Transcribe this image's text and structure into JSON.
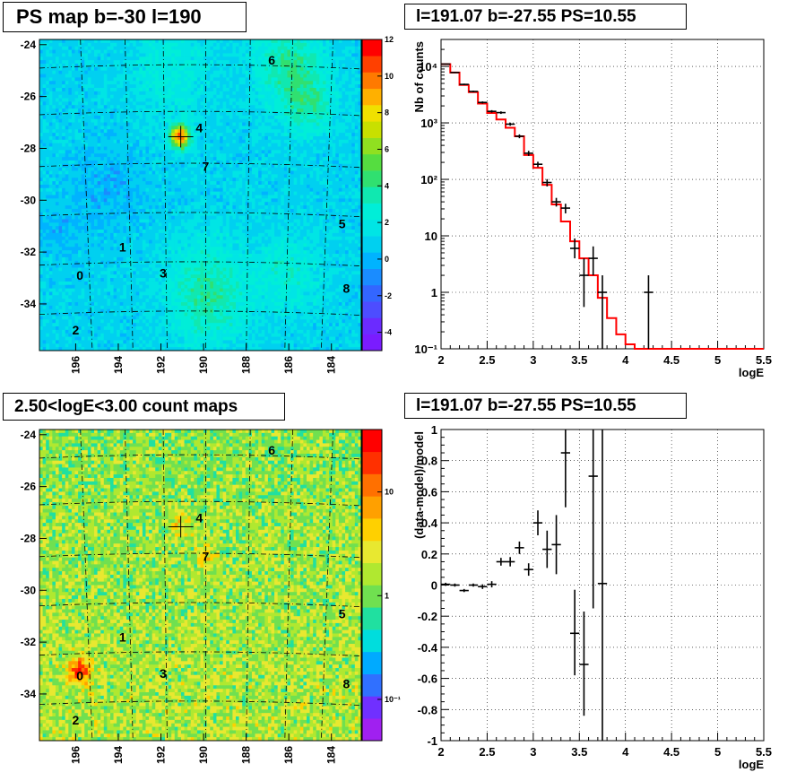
{
  "chart_data": [
    {
      "type": "heatmap",
      "title": "PS map b=-30 l=190",
      "x_tick_labels": [
        "196",
        "194",
        "192",
        "190",
        "188",
        "186",
        "184"
      ],
      "x_ticks": [
        196,
        194,
        192,
        190,
        188,
        186,
        184
      ],
      "y_tick_labels": [
        "-24",
        "-26",
        "-28",
        "-30",
        "-32",
        "-34"
      ],
      "y_ticks": [
        -24,
        -26,
        -28,
        -30,
        -32,
        -34
      ],
      "xlim": [
        197.7,
        182.6
      ],
      "ylim": [
        -35.8,
        -23.8
      ],
      "colorbar": {
        "min": -5,
        "max": 12,
        "tick_labels": [
          "12",
          "10",
          "8",
          "6",
          "4",
          "2",
          "0",
          "-2",
          "-4"
        ],
        "ticks": [
          12,
          10,
          8,
          6,
          4,
          2,
          0,
          -2,
          -4
        ]
      },
      "sources": [
        {
          "label": "0",
          "l": 195.8,
          "b": -32.9
        },
        {
          "label": "1",
          "l": 193.8,
          "b": -31.8
        },
        {
          "label": "2",
          "l": 196.0,
          "b": -35.0
        },
        {
          "label": "3",
          "l": 191.9,
          "b": -32.8
        },
        {
          "label": "4",
          "l": 190.2,
          "b": -27.2
        },
        {
          "label": "5",
          "l": 183.5,
          "b": -30.9
        },
        {
          "label": "6",
          "l": 186.8,
          "b": -24.6
        },
        {
          "label": "7",
          "l": 189.9,
          "b": -28.7
        },
        {
          "label": "8",
          "l": 183.3,
          "b": -33.4
        }
      ],
      "marker": {
        "l": 191.07,
        "b": -27.55
      }
    },
    {
      "type": "line",
      "title": "l=191.07 b=-27.55 PS=10.55",
      "xlabel": "logE",
      "ylabel": "Nb of counts",
      "xlim": [
        2,
        5.5
      ],
      "ylim": [
        0.1,
        30000
      ],
      "yscale": "log",
      "x_tick_labels": [
        "2",
        "2.5",
        "3",
        "3.5",
        "4",
        "4.5",
        "5",
        "5.5"
      ],
      "x_ticks": [
        2,
        2.5,
        3,
        3.5,
        4,
        4.5,
        5,
        5.5
      ],
      "y_tick_labels": [
        "10⁻¹",
        "1",
        "10",
        "10²",
        "10³",
        "10⁴"
      ],
      "y_ticks": [
        0.1,
        1,
        10,
        100,
        1000,
        10000
      ],
      "grid": true,
      "data_points": [
        {
          "x": 2.05,
          "y": 11000,
          "lo": 10800,
          "hi": 11200
        },
        {
          "x": 2.15,
          "y": 7800,
          "lo": 7600,
          "hi": 8000
        },
        {
          "x": 2.25,
          "y": 4800,
          "lo": 4650,
          "hi": 4950
        },
        {
          "x": 2.35,
          "y": 3600,
          "lo": 3480,
          "hi": 3720
        },
        {
          "x": 2.45,
          "y": 2300,
          "lo": 2200,
          "hi": 2400
        },
        {
          "x": 2.55,
          "y": 1600,
          "lo": 1520,
          "hi": 1680
        },
        {
          "x": 2.65,
          "y": 1520,
          "lo": 1440,
          "hi": 1600
        },
        {
          "x": 2.75,
          "y": 950,
          "lo": 890,
          "hi": 1010
        },
        {
          "x": 2.85,
          "y": 580,
          "lo": 535,
          "hi": 625
        },
        {
          "x": 2.95,
          "y": 290,
          "lo": 260,
          "hi": 320
        },
        {
          "x": 3.05,
          "y": 185,
          "lo": 165,
          "hi": 205
        },
        {
          "x": 3.15,
          "y": 88,
          "lo": 75,
          "hi": 101
        },
        {
          "x": 3.25,
          "y": 40,
          "lo": 33,
          "hi": 47
        },
        {
          "x": 3.35,
          "y": 31,
          "lo": 25,
          "hi": 37
        },
        {
          "x": 3.45,
          "y": 6,
          "lo": 4,
          "hi": 9
        },
        {
          "x": 3.55,
          "y": 2,
          "lo": 0.55,
          "hi": 4
        },
        {
          "x": 3.65,
          "y": 4,
          "lo": 2,
          "hi": 6.5
        },
        {
          "x": 3.75,
          "y": 1,
          "lo": 0.1,
          "hi": 2
        },
        {
          "x": 4.25,
          "y": 1,
          "lo": 0.1,
          "hi": 2
        }
      ],
      "model_step": {
        "edges": [
          2,
          2.1,
          2.2,
          2.3,
          2.4,
          2.5,
          2.6,
          2.7,
          2.8,
          2.9,
          3.0,
          3.1,
          3.2,
          3.3,
          3.4,
          3.5,
          3.6,
          3.7,
          3.8,
          3.9,
          4.0,
          4.1,
          5.5
        ],
        "values": [
          11000,
          7800,
          4700,
          3500,
          2200,
          1500,
          1150,
          820,
          580,
          270,
          160,
          80,
          36,
          18,
          8,
          4,
          2,
          0.8,
          0.35,
          0.18,
          0.12,
          0.1
        ]
      }
    },
    {
      "type": "heatmap",
      "title": "2.50<logE<3.00 count maps",
      "x_tick_labels": [
        "196",
        "194",
        "192",
        "190",
        "188",
        "186",
        "184"
      ],
      "x_ticks": [
        196,
        194,
        192,
        190,
        188,
        186,
        184
      ],
      "y_tick_labels": [
        "-24",
        "-26",
        "-28",
        "-30",
        "-32",
        "-34"
      ],
      "y_ticks": [
        -24,
        -26,
        -28,
        -30,
        -32,
        -34
      ],
      "xlim": [
        197.7,
        182.6
      ],
      "ylim": [
        -35.8,
        -23.8
      ],
      "colorbar": {
        "scale": "log",
        "tick_labels": [
          "10",
          "1",
          "10⁻¹"
        ],
        "ticks": [
          10,
          1,
          0.1
        ]
      },
      "sources": [
        {
          "label": "0",
          "l": 195.8,
          "b": -33.3
        },
        {
          "label": "1",
          "l": 193.8,
          "b": -31.8
        },
        {
          "label": "2",
          "l": 196.0,
          "b": -35.0
        },
        {
          "label": "3",
          "l": 191.9,
          "b": -33.2
        },
        {
          "label": "4",
          "l": 190.2,
          "b": -27.2
        },
        {
          "label": "5",
          "l": 183.5,
          "b": -30.9
        },
        {
          "label": "6",
          "l": 186.8,
          "b": -24.6
        },
        {
          "label": "7",
          "l": 189.9,
          "b": -28.7
        },
        {
          "label": "8",
          "l": 183.3,
          "b": -33.6
        }
      ],
      "marker": {
        "l": 191.07,
        "b": -27.55
      }
    },
    {
      "type": "scatter",
      "title": "l=191.07 b=-27.55 PS=10.55",
      "xlabel": "logE",
      "ylabel": "(data-model)/model",
      "xlim": [
        2,
        5.5
      ],
      "ylim": [
        -1,
        1
      ],
      "x_tick_labels": [
        "2",
        "2.5",
        "3",
        "3.5",
        "4",
        "4.5",
        "5",
        "5.5"
      ],
      "x_ticks": [
        2,
        2.5,
        3,
        3.5,
        4,
        4.5,
        5,
        5.5
      ],
      "y_tick_labels": [
        "1",
        "0.8",
        "0.6",
        "0.4",
        "0.2",
        "0",
        "-0.2",
        "-0.4",
        "-0.6",
        "-0.8",
        "-1"
      ],
      "y_ticks": [
        1,
        0.8,
        0.6,
        0.4,
        0.2,
        0,
        -0.2,
        -0.4,
        -0.6,
        -0.8,
        -1
      ],
      "grid": true,
      "data_points": [
        {
          "x": 2.05,
          "y": 0.005,
          "lo": -0.005,
          "hi": 0.015
        },
        {
          "x": 2.15,
          "y": 0.0,
          "lo": -0.01,
          "hi": 0.01
        },
        {
          "x": 2.25,
          "y": -0.035,
          "lo": -0.045,
          "hi": -0.025
        },
        {
          "x": 2.35,
          "y": 0.0,
          "lo": -0.01,
          "hi": 0.01
        },
        {
          "x": 2.45,
          "y": -0.01,
          "lo": -0.025,
          "hi": 0.005
        },
        {
          "x": 2.55,
          "y": 0.005,
          "lo": -0.015,
          "hi": 0.025
        },
        {
          "x": 2.65,
          "y": 0.15,
          "lo": 0.125,
          "hi": 0.175
        },
        {
          "x": 2.75,
          "y": 0.15,
          "lo": 0.12,
          "hi": 0.18
        },
        {
          "x": 2.85,
          "y": 0.24,
          "lo": 0.2,
          "hi": 0.28
        },
        {
          "x": 2.95,
          "y": 0.1,
          "lo": 0.06,
          "hi": 0.14
        },
        {
          "x": 3.05,
          "y": 0.4,
          "lo": 0.32,
          "hi": 0.48
        },
        {
          "x": 3.15,
          "y": 0.23,
          "lo": 0.11,
          "hi": 0.35
        },
        {
          "x": 3.25,
          "y": 0.26,
          "lo": 0.07,
          "hi": 0.45
        },
        {
          "x": 3.35,
          "y": 0.85,
          "lo": 0.5,
          "hi": 1.0
        },
        {
          "x": 3.45,
          "y": -0.31,
          "lo": -0.58,
          "hi": -0.03
        },
        {
          "x": 3.55,
          "y": -0.51,
          "lo": -0.84,
          "hi": -0.17
        },
        {
          "x": 3.65,
          "y": 0.7,
          "lo": -0.15,
          "hi": 1.0
        },
        {
          "x": 3.75,
          "y": 0.01,
          "lo": -1.0,
          "hi": 1.0
        }
      ]
    }
  ]
}
